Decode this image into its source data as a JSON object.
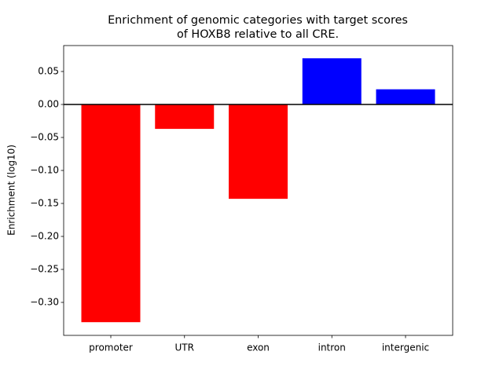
{
  "chart_data": {
    "type": "bar",
    "title": [
      "Enrichment of genomic categories with target scores",
      "of HOXB8 relative to all CRE."
    ],
    "y_label": "Enrichment (log10)",
    "categories": [
      "promoter",
      "UTR",
      "exon",
      "intron",
      "intergenic"
    ],
    "values": [
      -0.33,
      -0.037,
      -0.143,
      0.07,
      0.023
    ],
    "colors": [
      "#ff0000",
      "#ff0000",
      "#ff0000",
      "#0000ff",
      "#0000ff"
    ],
    "ylim": [
      -0.35,
      0.0893
    ],
    "yticks": [
      {
        "value": 0.05,
        "label": "0.05"
      },
      {
        "value": 0.0,
        "label": "0.00"
      },
      {
        "value": -0.05,
        "label": "−0.05"
      },
      {
        "value": -0.1,
        "label": "−0.10"
      },
      {
        "value": -0.15,
        "label": "−0.15"
      },
      {
        "value": -0.2,
        "label": "−0.20"
      },
      {
        "value": -0.25,
        "label": "−0.25"
      },
      {
        "value": -0.3,
        "label": "−0.30"
      }
    ],
    "grid": false
  }
}
